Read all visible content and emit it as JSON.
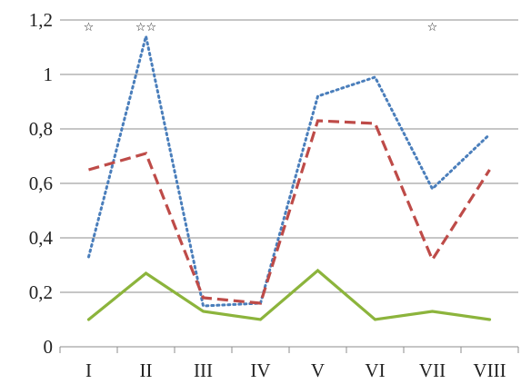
{
  "chart_data": {
    "type": "line",
    "title": "",
    "xlabel": "",
    "ylabel": "",
    "categories": [
      "I",
      "II",
      "III",
      "IV",
      "V",
      "VI",
      "VII",
      "VIII"
    ],
    "ylim": [
      0,
      1.2
    ],
    "yticks": [
      {
        "value": 0,
        "label": "0"
      },
      {
        "value": 0.2,
        "label": "0,2"
      },
      {
        "value": 0.4,
        "label": "0,4"
      },
      {
        "value": 0.6,
        "label": "0,6"
      },
      {
        "value": 0.8,
        "label": "0,8"
      },
      {
        "value": 1,
        "label": "1"
      },
      {
        "value": 1.2,
        "label": "1,2"
      }
    ],
    "grid": true,
    "legend": "none",
    "series": [
      {
        "style": "dotted",
        "color": "#4a7ebb",
        "values": [
          0.33,
          1.14,
          0.15,
          0.16,
          0.92,
          0.99,
          0.58,
          0.78
        ]
      },
      {
        "style": "dashed",
        "color": "#be4b48",
        "values": [
          0.65,
          0.71,
          0.18,
          0.16,
          0.83,
          0.82,
          0.32,
          0.65
        ]
      },
      {
        "style": "solid",
        "color": "#8cb43c",
        "values": [
          0.1,
          0.27,
          0.13,
          0.1,
          0.28,
          0.1,
          0.13,
          0.1
        ]
      }
    ],
    "annotations": [
      {
        "category": "I",
        "text": "☆"
      },
      {
        "category": "II",
        "text": "☆☆"
      },
      {
        "category": "VII",
        "text": "☆"
      }
    ]
  }
}
